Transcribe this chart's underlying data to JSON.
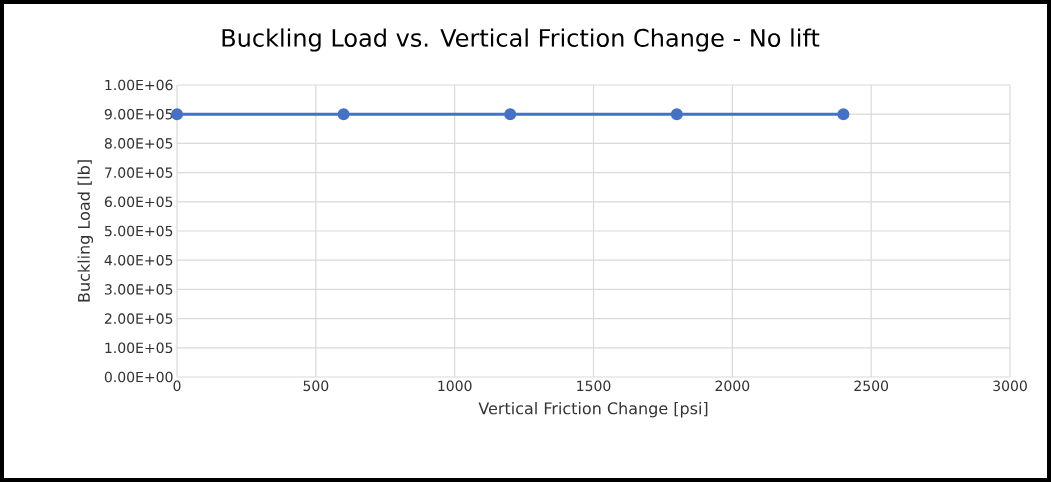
{
  "chart_data": {
    "type": "line",
    "title": "Buckling Load vs. Vertical Friction Change - No lift",
    "xlabel": "Vertical Friction Change [psi]",
    "ylabel": "Buckling Load [lb]",
    "x": [
      0,
      600,
      1200,
      1800,
      2400
    ],
    "series": [
      {
        "color": "#4472c4",
        "values": [
          900000,
          900000,
          900000,
          900000,
          900000
        ]
      }
    ],
    "xlim": [
      0,
      3000
    ],
    "xticks": [
      0,
      500,
      1000,
      1500,
      2000,
      2500,
      3000
    ],
    "ylim": [
      0,
      1000000
    ],
    "yticks": [
      {
        "value": 0,
        "label": "0.00E+00"
      },
      {
        "value": 100000,
        "label": "1.00E+05"
      },
      {
        "value": 200000,
        "label": "2.00E+05"
      },
      {
        "value": 300000,
        "label": "3.00E+05"
      },
      {
        "value": 400000,
        "label": "4.00E+05"
      },
      {
        "value": 500000,
        "label": "5.00E+05"
      },
      {
        "value": 600000,
        "label": "6.00E+05"
      },
      {
        "value": 700000,
        "label": "7.00E+05"
      },
      {
        "value": 800000,
        "label": "8.00E+05"
      },
      {
        "value": 900000,
        "label": "9.00E+05"
      },
      {
        "value": 1000000,
        "label": "1.00E+06"
      }
    ],
    "grid": true,
    "marker": "circle",
    "line_style": "solid"
  }
}
